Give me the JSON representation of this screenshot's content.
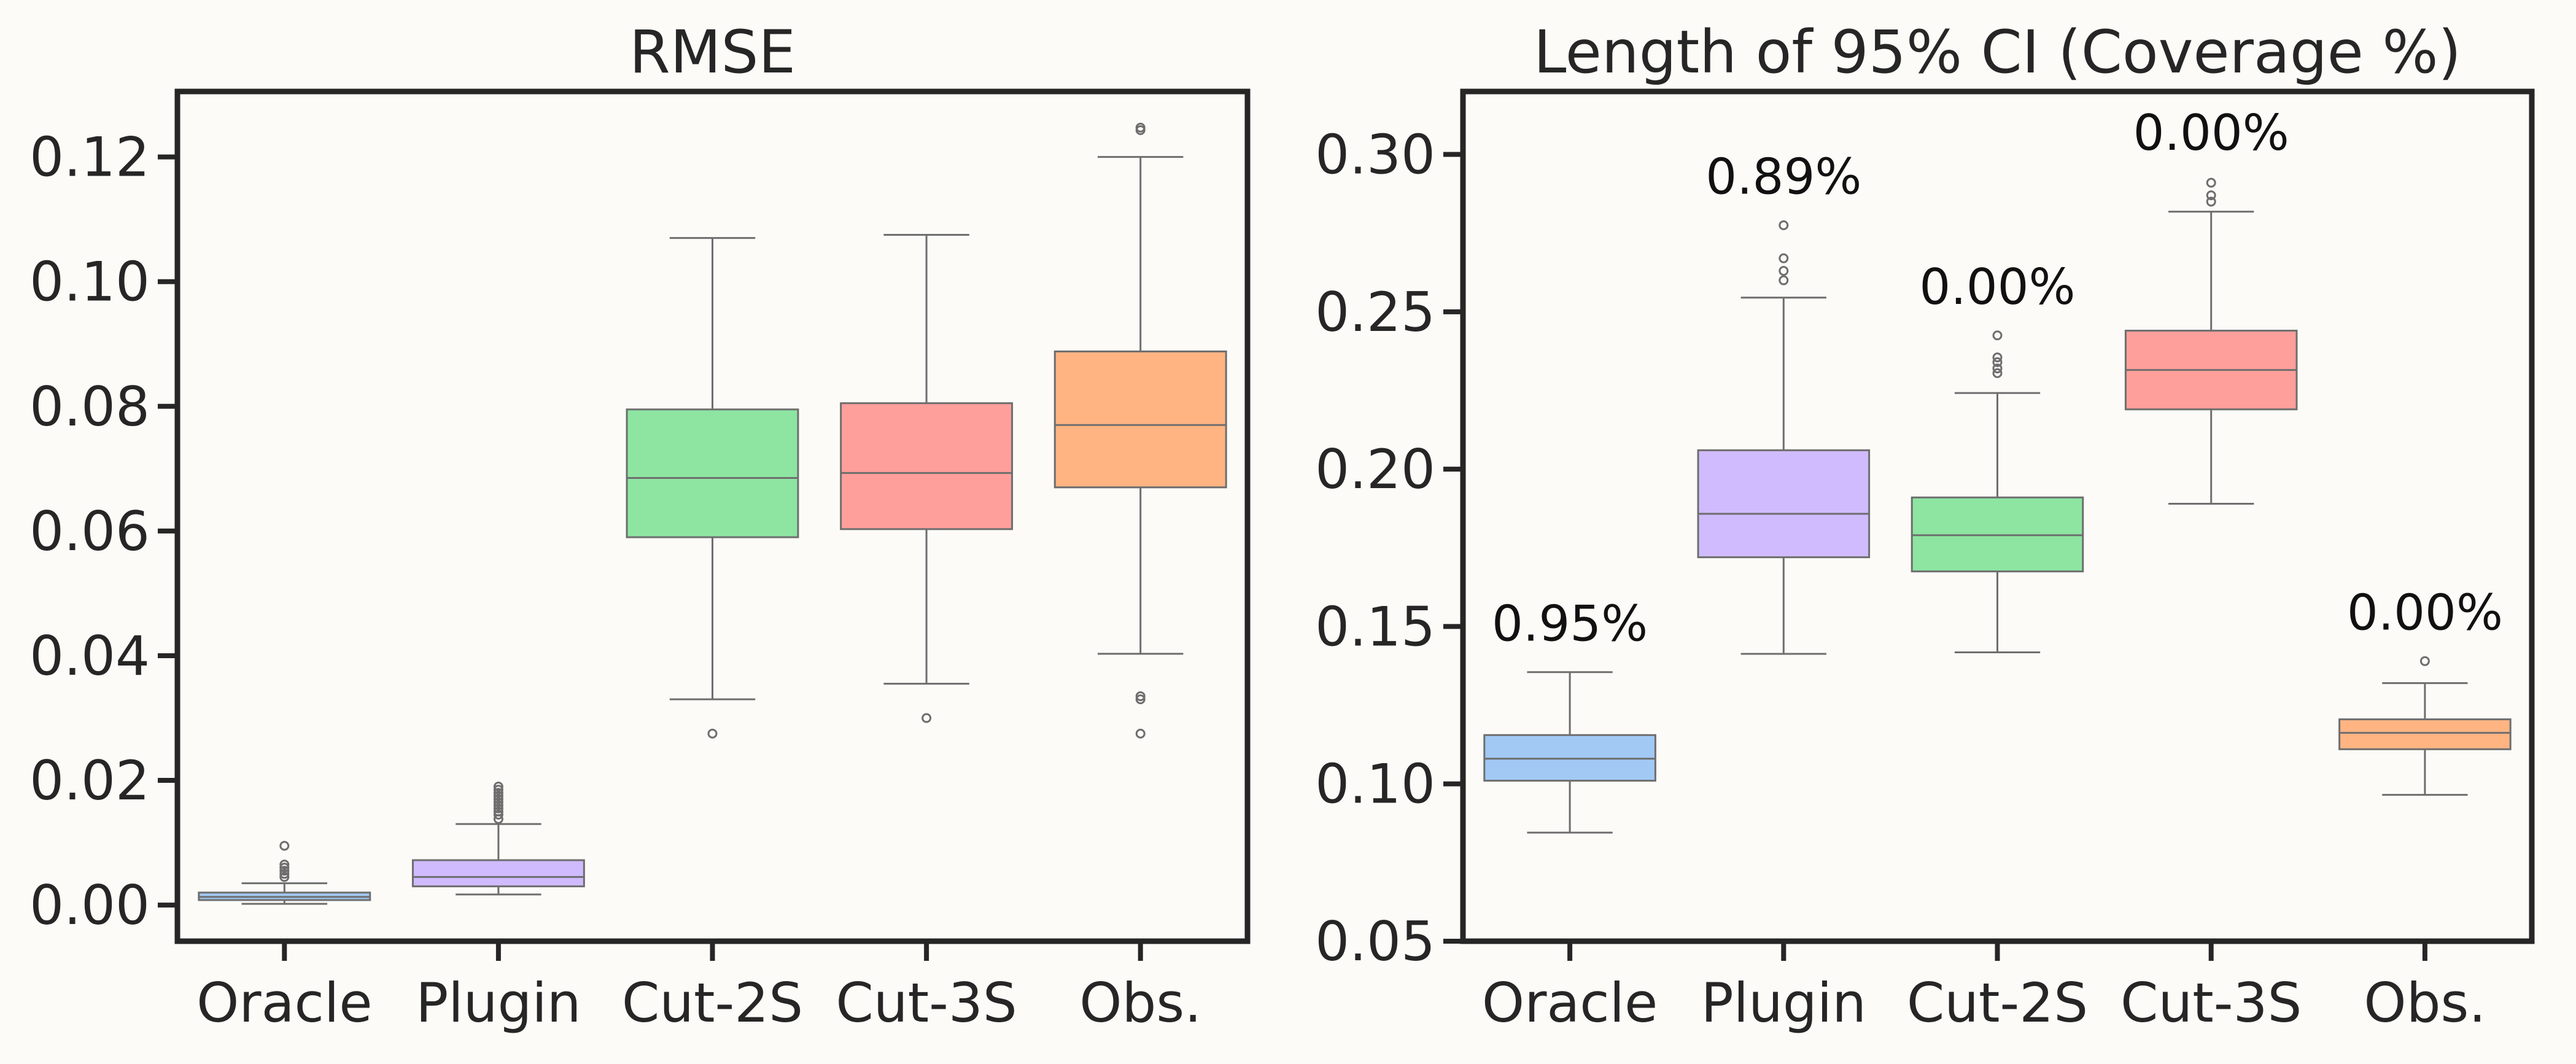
{
  "chart_data": [
    {
      "type": "box",
      "title": "RMSE",
      "xlabel": "",
      "ylabel": "",
      "categories": [
        "Oracle",
        "Plugin",
        "Cut-2S",
        "Cut-3S",
        "Obs."
      ],
      "ylim": [
        -0.0058,
        0.1305
      ],
      "yticks": [
        "0.00",
        "0.02",
        "0.04",
        "0.06",
        "0.08",
        "0.10",
        "0.12"
      ],
      "ytick_values": [
        0.0,
        0.02,
        0.04,
        0.06,
        0.08,
        0.1,
        0.12
      ],
      "grid": false,
      "boxes": [
        {
          "category": "Oracle",
          "whisker_low": 0.0002,
          "q1": 0.0008,
          "median": 0.0013,
          "q3": 0.002,
          "whisker_high": 0.0035,
          "outliers": [
            0.0045,
            0.005,
            0.0055,
            0.006,
            0.0065,
            0.0095
          ],
          "color": "#a1c9f4"
        },
        {
          "category": "Plugin",
          "whisker_low": 0.0017,
          "q1": 0.003,
          "median": 0.0045,
          "q3": 0.0072,
          "whisker_high": 0.013,
          "outliers": [
            0.0138,
            0.0145,
            0.015,
            0.0155,
            0.016,
            0.0165,
            0.017,
            0.0175,
            0.018,
            0.0185,
            0.019
          ],
          "color": "#d0bbff"
        },
        {
          "category": "Cut-2S",
          "whisker_low": 0.033,
          "q1": 0.059,
          "median": 0.0685,
          "q3": 0.0795,
          "whisker_high": 0.107,
          "outliers": [
            0.0275
          ],
          "color": "#8de5a1"
        },
        {
          "category": "Cut-3S",
          "whisker_low": 0.0355,
          "q1": 0.0603,
          "median": 0.0693,
          "q3": 0.0805,
          "whisker_high": 0.1075,
          "outliers": [
            0.03
          ],
          "color": "#ff9f9b"
        },
        {
          "category": "Obs.",
          "whisker_low": 0.0403,
          "q1": 0.067,
          "median": 0.077,
          "q3": 0.0888,
          "whisker_high": 0.12,
          "outliers": [
            0.0275,
            0.033,
            0.0335,
            0.1243,
            0.1247
          ],
          "color": "#ffb482"
        }
      ],
      "annotations": []
    },
    {
      "type": "box",
      "title": "Length of 95% CI (Coverage %)",
      "xlabel": "",
      "ylabel": "",
      "categories": [
        "Oracle",
        "Plugin",
        "Cut-2S",
        "Cut-3S",
        "Obs."
      ],
      "ylim": [
        0.05,
        0.32
      ],
      "yticks": [
        "0.05",
        "0.10",
        "0.15",
        "0.20",
        "0.25",
        "0.30"
      ],
      "ytick_values": [
        0.05,
        0.1,
        0.15,
        0.2,
        0.25,
        0.3
      ],
      "grid": false,
      "boxes": [
        {
          "category": "Oracle",
          "whisker_low": 0.0845,
          "q1": 0.101,
          "median": 0.108,
          "q3": 0.1155,
          "whisker_high": 0.1355,
          "outliers": [],
          "color": "#a1c9f4"
        },
        {
          "category": "Plugin",
          "whisker_low": 0.1413,
          "q1": 0.172,
          "median": 0.1858,
          "q3": 0.206,
          "whisker_high": 0.2545,
          "outliers": [
            0.26,
            0.263,
            0.267,
            0.2775
          ],
          "color": "#d0bbff"
        },
        {
          "category": "Cut-2S",
          "whisker_low": 0.1418,
          "q1": 0.1675,
          "median": 0.179,
          "q3": 0.191,
          "whisker_high": 0.2242,
          "outliers": [
            0.2305,
            0.232,
            0.234,
            0.2355,
            0.2425
          ],
          "color": "#8de5a1"
        },
        {
          "category": "Cut-3S",
          "whisker_low": 0.189,
          "q1": 0.219,
          "median": 0.2315,
          "q3": 0.244,
          "whisker_high": 0.2818,
          "outliers": [
            0.285,
            0.287,
            0.291
          ],
          "color": "#ff9f9b"
        },
        {
          "category": "Obs.",
          "whisker_low": 0.0965,
          "q1": 0.111,
          "median": 0.1162,
          "q3": 0.1205,
          "whisker_high": 0.132,
          "outliers": [
            0.139
          ],
          "color": "#ffb482"
        }
      ],
      "annotations": [
        {
          "category": "Oracle",
          "text": "0.95%",
          "y": 0.1455
        },
        {
          "category": "Plugin",
          "text": "0.89%",
          "y": 0.2875
        },
        {
          "category": "Cut-2S",
          "text": "0.00%",
          "y": 0.2525
        },
        {
          "category": "Cut-3S",
          "text": "0.00%",
          "y": 0.3015
        },
        {
          "category": "Obs.",
          "text": "0.00%",
          "y": 0.149
        }
      ]
    }
  ]
}
